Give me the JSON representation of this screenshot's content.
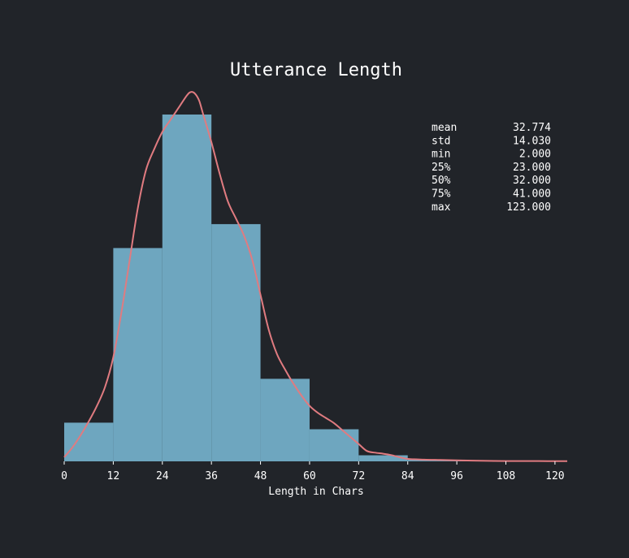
{
  "chart_data": {
    "type": "bar",
    "title": "Utterance Length",
    "xlabel": "Length in Chars",
    "ylabel": "",
    "xlim": [
      0,
      123
    ],
    "x_ticks": [
      0,
      12,
      24,
      36,
      48,
      60,
      72,
      84,
      96,
      108,
      120
    ],
    "bins": [
      {
        "start": 0,
        "end": 12,
        "value": 0.1115
      },
      {
        "start": 12,
        "end": 24,
        "value": 0.615
      },
      {
        "start": 24,
        "end": 36,
        "value": 1.0
      },
      {
        "start": 36,
        "end": 48,
        "value": 0.684
      },
      {
        "start": 48,
        "end": 60,
        "value": 0.238
      },
      {
        "start": 60,
        "end": 72,
        "value": 0.0925
      },
      {
        "start": 72,
        "end": 84,
        "value": 0.0175
      },
      {
        "start": 84,
        "end": 96,
        "value": 0.0047
      },
      {
        "start": 96,
        "end": 108,
        "value": 0.0012
      },
      {
        "start": 108,
        "end": 123,
        "value": 0.0006
      }
    ],
    "density_curve": [
      [
        0,
        0.012
      ],
      [
        2,
        0.04
      ],
      [
        4,
        0.075
      ],
      [
        6,
        0.115
      ],
      [
        8,
        0.16
      ],
      [
        10,
        0.215
      ],
      [
        12,
        0.3
      ],
      [
        14,
        0.43
      ],
      [
        16,
        0.58
      ],
      [
        18,
        0.73
      ],
      [
        20,
        0.84
      ],
      [
        22,
        0.9
      ],
      [
        24,
        0.95
      ],
      [
        26,
        0.985
      ],
      [
        28,
        1.02
      ],
      [
        30,
        1.055
      ],
      [
        31,
        1.065
      ],
      [
        32,
        1.06
      ],
      [
        33,
        1.04
      ],
      [
        34,
        1.0
      ],
      [
        36,
        0.92
      ],
      [
        38,
        0.83
      ],
      [
        40,
        0.75
      ],
      [
        42,
        0.7
      ],
      [
        44,
        0.65
      ],
      [
        46,
        0.58
      ],
      [
        48,
        0.48
      ],
      [
        50,
        0.38
      ],
      [
        52,
        0.31
      ],
      [
        54,
        0.265
      ],
      [
        56,
        0.225
      ],
      [
        58,
        0.19
      ],
      [
        60,
        0.16
      ],
      [
        62,
        0.14
      ],
      [
        64,
        0.125
      ],
      [
        66,
        0.11
      ],
      [
        68,
        0.09
      ],
      [
        70,
        0.07
      ],
      [
        72,
        0.05
      ],
      [
        74,
        0.03
      ],
      [
        76,
        0.025
      ],
      [
        78,
        0.022
      ],
      [
        80,
        0.018
      ],
      [
        82,
        0.012
      ],
      [
        84,
        0.007
      ],
      [
        88,
        0.005
      ],
      [
        92,
        0.004
      ],
      [
        96,
        0.003
      ],
      [
        100,
        0.002
      ],
      [
        108,
        0.001
      ],
      [
        116,
        0.0008
      ],
      [
        123,
        0.0005
      ]
    ],
    "stats": [
      {
        "label": "mean",
        "value": "32.774"
      },
      {
        "label": "std",
        "value": "14.030"
      },
      {
        "label": "min",
        "value": "2.000"
      },
      {
        "label": "25%",
        "value": "23.000"
      },
      {
        "label": "50%",
        "value": "32.000"
      },
      {
        "label": "75%",
        "value": "41.000"
      },
      {
        "label": "max",
        "value": "123.000"
      }
    ],
    "colors": {
      "background": "#212429",
      "bar": "#6ea6bf",
      "curve": "#e07b80",
      "text": "#ffffff"
    },
    "grid": false,
    "legend": "none"
  }
}
